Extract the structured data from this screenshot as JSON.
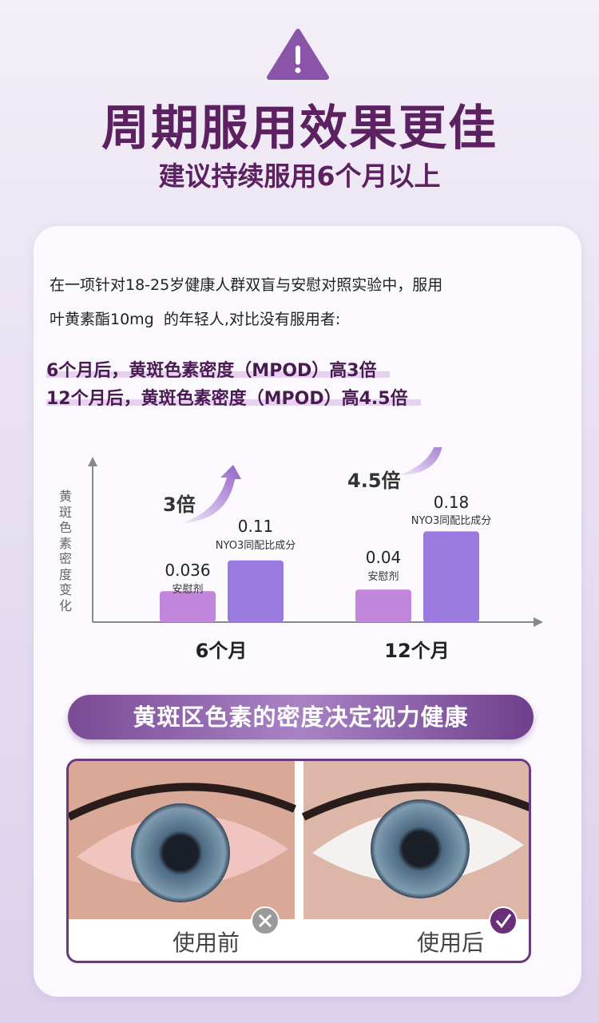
{
  "header": {
    "warning_icon": "warning-triangle-icon",
    "title": "周期服用效果更佳",
    "subtitle": "建议持续服用6个月以上"
  },
  "intro": {
    "line1": "在一项针对18-25岁健康人群双盲与安慰对照实验中，服用",
    "line2": "叶黄素酯10mg  的年轻人,对比没有服用者:"
  },
  "highlights": [
    "6个月后，黄斑色素密度（MPOD）高3倍",
    "12个月后，黄斑色素密度（MPOD）高4.5倍"
  ],
  "chart_data": {
    "type": "bar",
    "ylabel": "黄斑色素密度变化",
    "categories": [
      "6个月",
      "12个月"
    ],
    "series": [
      {
        "name": "安慰剂",
        "values": [
          0.036,
          0.04
        ],
        "value_labels": [
          "0.036",
          "0.04"
        ],
        "color": "#c286dc"
      },
      {
        "name": "NYO3同配比成分",
        "values": [
          0.11,
          0.18
        ],
        "value_labels": [
          "0.11",
          "0.18"
        ],
        "color": "#9b7ae0"
      }
    ],
    "annotations": [
      "3倍",
      "4.5倍"
    ]
  },
  "banner": "黄斑区色素的密度决定视力健康",
  "comparison": {
    "before_label": "使用前",
    "after_label": "使用后",
    "before_icon": "x-circle-icon",
    "after_icon": "check-circle-icon"
  }
}
